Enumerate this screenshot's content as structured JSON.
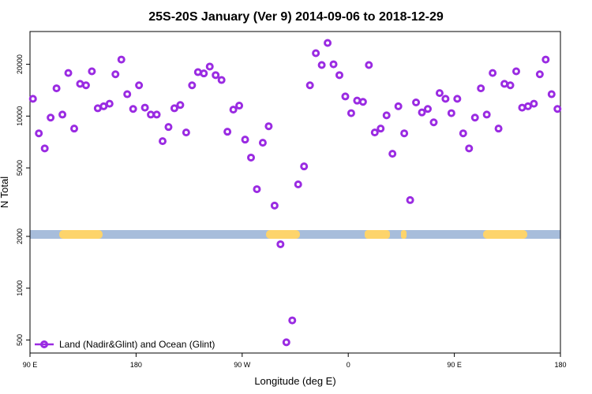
{
  "chart_data": {
    "type": "scatter",
    "title": "25S-20S January (Ver 9)   2014-09-06 to 2018-12-29",
    "x_label": "Longitude (deg E)",
    "y_label": "N Total",
    "log_y": true,
    "legend": "bottom-left",
    "xlim": [
      90,
      540
    ],
    "ylim": [
      420,
      31000
    ],
    "xticks": [
      {
        "value": 90,
        "label": "90 E"
      },
      180,
      {
        "value": 270,
        "label": "90 W"
      },
      {
        "value": 360,
        "label": "0"
      },
      {
        "value": 450,
        "label": "90 E"
      },
      {
        "value": 540,
        "label": "180"
      }
    ],
    "yticks": [
      500,
      1000,
      2000,
      5000,
      10000,
      20000
    ],
    "series": [
      {
        "name": "Land (Nadir&Glint) and Ocean (Glint)",
        "color": "#9a2be2",
        "x": [
          92.5,
          97.5,
          102.5,
          107.5,
          112.5,
          117.5,
          122.5,
          127.5,
          132.5,
          137.5,
          142.5,
          147.5,
          152.5,
          157.5,
          162.5,
          167.5,
          172.5,
          177.5,
          182.5,
          187.5,
          192.5,
          197.5,
          202.5,
          207.5,
          212.5,
          217.5,
          222.5,
          227.5,
          232.5,
          237.5,
          242.5,
          247.5,
          252.5,
          257.5,
          262.5,
          267.5,
          272.5,
          277.5,
          282.5,
          287.5,
          292.5,
          297.5,
          302.5,
          307.5,
          312.5,
          317.5,
          322.5,
          327.5,
          332.5,
          337.5,
          342.5,
          347.5,
          352.5,
          357.5,
          362.5,
          367.5,
          372.5,
          377.5,
          382.5,
          387.5,
          392.5,
          397.5,
          402.5,
          407.5,
          412.5,
          417.5,
          422.5,
          427.5,
          432.5,
          437.5,
          442.5,
          447.5,
          452.5,
          457.5,
          462.5,
          467.5,
          472.5,
          477.5,
          482.5,
          487.5,
          492.5,
          497.5,
          502.5,
          507.5,
          512.5,
          517.5,
          522.5,
          527.5,
          532.5,
          537.5
        ],
        "values": [
          12600,
          7940,
          6490,
          9800,
          14500,
          10200,
          17800,
          8460,
          15400,
          15100,
          18200,
          11100,
          11400,
          11800,
          17500,
          21300,
          13400,
          11000,
          15100,
          11200,
          10200,
          10200,
          7150,
          8640,
          11100,
          11600,
          8030,
          15100,
          18000,
          17700,
          19400,
          17300,
          16200,
          8110,
          10900,
          11500,
          7300,
          5740,
          3760,
          7000,
          8730,
          3020,
          1800,
          485,
          650,
          4010,
          5100,
          15100,
          23200,
          19800,
          26600,
          20000,
          17300,
          13000,
          10400,
          12300,
          12100,
          19800,
          8030,
          8460,
          10100,
          6040,
          11400,
          7940,
          3250,
          12000,
          10500,
          11000,
          9200,
          13600,
          12600,
          10400,
          12600,
          7940,
          6490,
          9800,
          14500,
          10200,
          17800,
          8460,
          15400,
          15100,
          18200,
          11200,
          11400,
          11800,
          17500,
          21300,
          13400,
          11000
        ]
      }
    ]
  }
}
